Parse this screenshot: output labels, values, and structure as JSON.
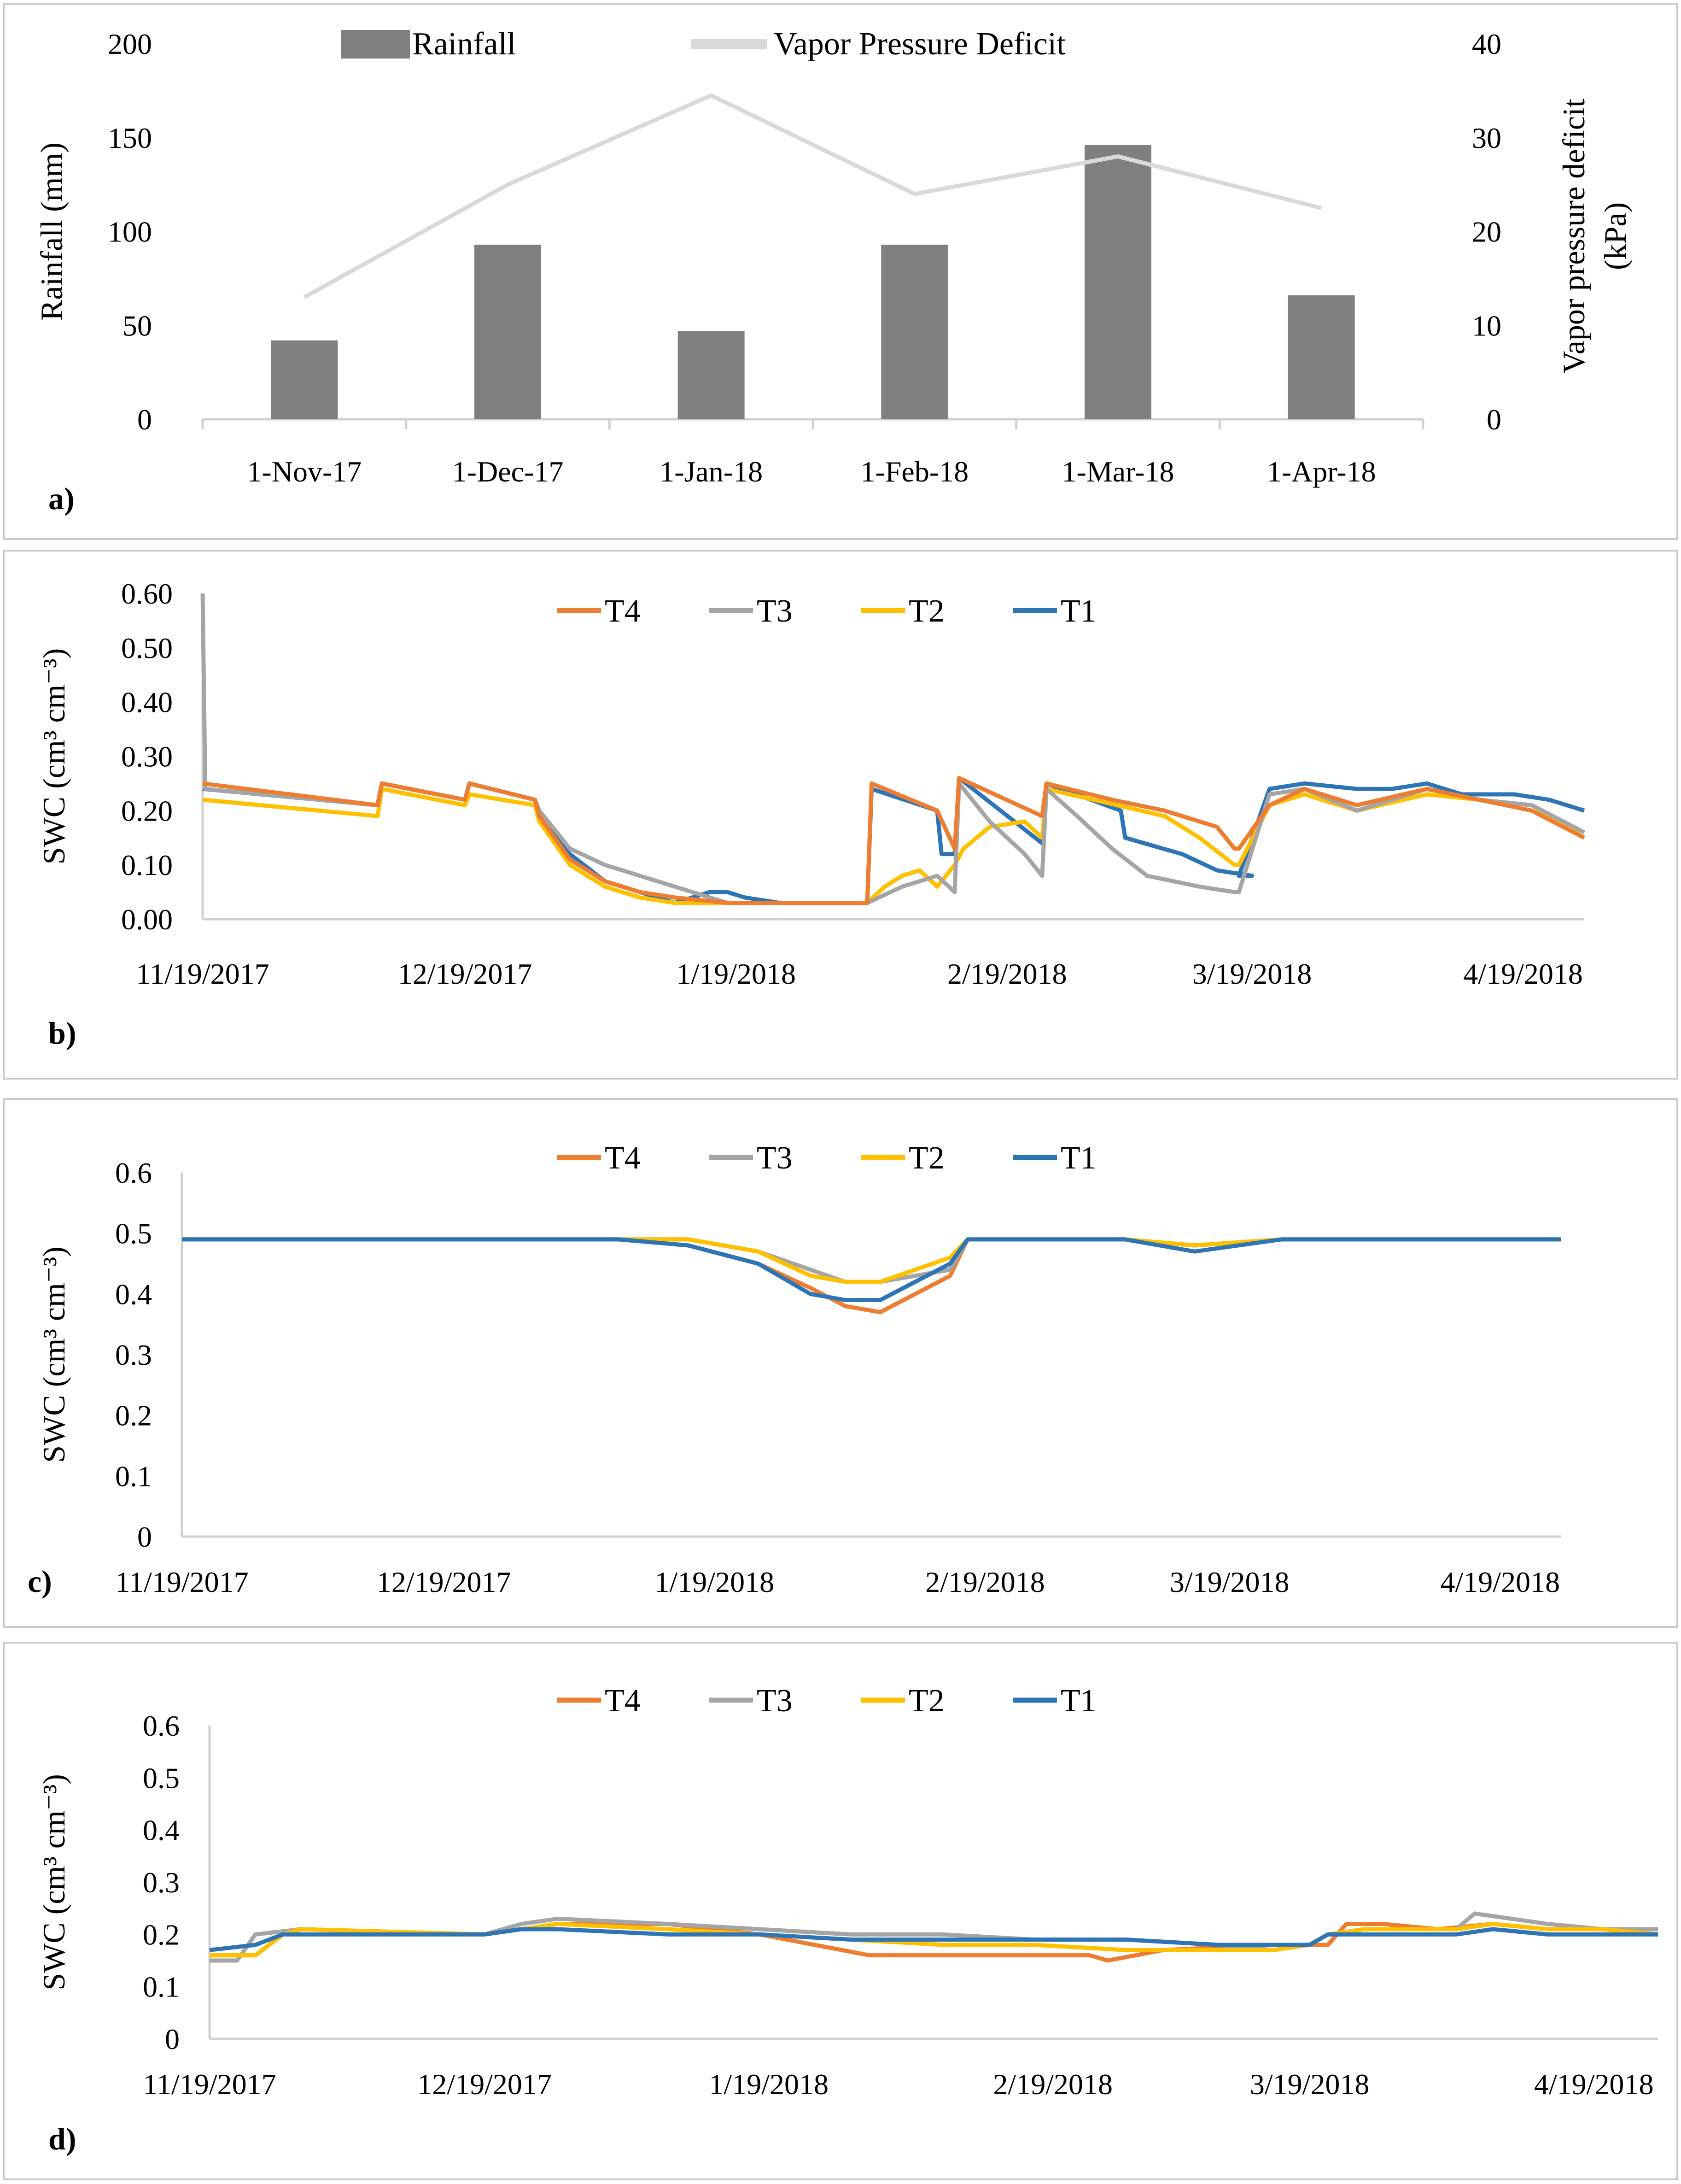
{
  "colors": {
    "T1": "#2e75b6",
    "T2": "#ffc000",
    "T3": "#a5a5a5",
    "T4": "#ed7d31",
    "rainfall": "#7f7f7f",
    "vpd": "#d9d9d9"
  },
  "chart_data": [
    {
      "id": "a",
      "panel_label": "a)",
      "type": "bar",
      "categories": [
        "1-Nov-17",
        "1-Dec-17",
        "1-Jan-18",
        "1-Feb-18",
        "1-Mar-18",
        "1-Apr-18"
      ],
      "series": [
        {
          "name": "Rainfall",
          "type": "bar",
          "axis": "left",
          "values": [
            42,
            93,
            47,
            93,
            146,
            66
          ]
        },
        {
          "name": "Vapor Pressure Deficit",
          "type": "line",
          "axis": "right",
          "values": [
            13,
            25,
            34.5,
            24,
            28,
            22.5
          ]
        }
      ],
      "ylabel": "Rainfall (mm)",
      "ylim": [
        0,
        200
      ],
      "yticks": [
        0,
        50,
        100,
        150,
        200
      ],
      "ytick_labels": [
        "0",
        "50",
        "100",
        "150",
        "200"
      ],
      "y2label_lines": [
        "Vapor pressure deficit",
        "(kPa)"
      ],
      "y2lim": [
        0,
        40
      ],
      "y2ticks": [
        0,
        10,
        20,
        30,
        40
      ],
      "y2tick_labels": [
        "0",
        "10",
        "20",
        "30",
        "40"
      ],
      "legend": [
        "Rainfall",
        "Vapor Pressure Deficit"
      ],
      "legend_position": "top-center"
    },
    {
      "id": "b",
      "panel_label": "b)",
      "type": "line",
      "ylabel": "SWC (cm³ cm⁻³)",
      "ylim": [
        0,
        0.6
      ],
      "yticks": [
        0,
        0.1,
        0.2,
        0.3,
        0.4,
        0.5,
        0.6
      ],
      "ytick_labels": [
        "0.00",
        "0.10",
        "0.20",
        "0.30",
        "0.40",
        "0.50",
        "0.60"
      ],
      "xlim": [
        0,
        158
      ],
      "xticks": [
        0,
        30,
        61,
        92,
        120,
        151
      ],
      "xtick_labels": [
        "11/19/2017",
        "12/19/2017",
        "1/19/2018",
        "2/19/2018",
        "3/19/2018",
        "4/19/2018"
      ],
      "legend": [
        "T4",
        "T3",
        "T2",
        "T1"
      ],
      "legend_position": "top-center",
      "x_unit": "days since 11/19/2017",
      "series": [
        {
          "name": "T1",
          "x": [
            0,
            20,
            20.5,
            30,
            30.5,
            38,
            38.5,
            42,
            46,
            50,
            54,
            58,
            60,
            62,
            66,
            70,
            76,
            76.5,
            84,
            84.5,
            86,
            86.5,
            96,
            96.5,
            105,
            105.5,
            112,
            116,
            120,
            118.5,
            122,
            126,
            132,
            136,
            140,
            144,
            150,
            154,
            158
          ],
          "y": [
            0.24,
            0.21,
            0.25,
            0.22,
            0.25,
            0.22,
            0.19,
            0.12,
            0.07,
            0.05,
            0.03,
            0.05,
            0.05,
            0.04,
            0.03,
            0.03,
            0.03,
            0.24,
            0.2,
            0.12,
            0.12,
            0.26,
            0.14,
            0.25,
            0.2,
            0.15,
            0.12,
            0.09,
            0.08,
            0.08,
            0.24,
            0.25,
            0.24,
            0.24,
            0.25,
            0.23,
            0.23,
            0.22,
            0.2
          ]
        },
        {
          "name": "T2",
          "x": [
            0,
            20,
            20.5,
            30,
            30.5,
            38,
            38.5,
            42,
            46,
            50,
            54,
            60,
            66,
            72,
            76,
            78,
            80,
            82,
            84,
            86,
            87,
            90,
            94,
            96,
            96.5,
            110,
            114,
            118,
            118.5,
            122,
            126,
            132,
            140,
            146,
            152,
            158
          ],
          "y": [
            0.22,
            0.19,
            0.24,
            0.21,
            0.23,
            0.21,
            0.18,
            0.1,
            0.06,
            0.04,
            0.03,
            0.03,
            0.03,
            0.03,
            0.03,
            0.06,
            0.08,
            0.09,
            0.06,
            0.1,
            0.13,
            0.17,
            0.18,
            0.15,
            0.24,
            0.19,
            0.15,
            0.1,
            0.1,
            0.21,
            0.23,
            0.2,
            0.23,
            0.22,
            0.21,
            0.15
          ]
        },
        {
          "name": "T3",
          "x": [
            0,
            0.3,
            20,
            20.5,
            30,
            30.5,
            38,
            38.5,
            42,
            46,
            50,
            56,
            60,
            66,
            72,
            76,
            80,
            84,
            86,
            86.5,
            90,
            94,
            96,
            96.5,
            100,
            104,
            108,
            114,
            118,
            118.5,
            122,
            126,
            132,
            140,
            146,
            152,
            158
          ],
          "y": [
            0.6,
            0.24,
            0.21,
            0.25,
            0.22,
            0.25,
            0.22,
            0.2,
            0.13,
            0.1,
            0.08,
            0.05,
            0.03,
            0.03,
            0.03,
            0.03,
            0.06,
            0.08,
            0.05,
            0.25,
            0.18,
            0.12,
            0.08,
            0.24,
            0.19,
            0.13,
            0.08,
            0.06,
            0.05,
            0.05,
            0.23,
            0.24,
            0.2,
            0.24,
            0.22,
            0.21,
            0.16
          ]
        },
        {
          "name": "T4",
          "x": [
            0,
            20,
            20.5,
            30,
            30.5,
            38,
            38.5,
            42,
            46,
            50,
            54,
            60,
            66,
            72,
            76,
            76.5,
            84,
            86,
            86.5,
            96,
            96.5,
            104,
            110,
            116,
            118,
            118.5,
            122,
            126,
            132,
            140,
            146,
            152,
            158
          ],
          "y": [
            0.25,
            0.21,
            0.25,
            0.22,
            0.25,
            0.22,
            0.19,
            0.11,
            0.07,
            0.05,
            0.04,
            0.03,
            0.03,
            0.03,
            0.03,
            0.25,
            0.2,
            0.13,
            0.26,
            0.19,
            0.25,
            0.22,
            0.2,
            0.17,
            0.13,
            0.13,
            0.21,
            0.24,
            0.21,
            0.24,
            0.22,
            0.2,
            0.15
          ]
        }
      ]
    },
    {
      "id": "c",
      "panel_label": "c)",
      "type": "line",
      "ylabel": "SWC (cm³ cm⁻³)",
      "ylim": [
        0,
        0.6
      ],
      "yticks": [
        0,
        0.1,
        0.2,
        0.3,
        0.4,
        0.5,
        0.6
      ],
      "ytick_labels": [
        "0",
        "0.1",
        "0.2",
        "0.3",
        "0.4",
        "0.5",
        "0.6"
      ],
      "xlim": [
        0,
        158
      ],
      "xticks": [
        0,
        30,
        61,
        92,
        120,
        151
      ],
      "xtick_labels": [
        "11/19/2017",
        "12/19/2017",
        "1/19/2018",
        "2/19/2018",
        "3/19/2018",
        "4/19/2018"
      ],
      "legend": [
        "T4",
        "T3",
        "T2",
        "T1"
      ],
      "legend_position": "top-center",
      "x_unit": "days since 11/19/2017",
      "series": [
        {
          "name": "T4",
          "x": [
            0,
            10,
            50,
            58,
            66,
            72,
            76,
            80,
            84,
            88,
            90,
            96,
            100,
            108,
            116,
            126,
            140,
            158
          ],
          "y": [
            0.49,
            0.49,
            0.49,
            0.48,
            0.45,
            0.41,
            0.38,
            0.37,
            0.4,
            0.43,
            0.49,
            0.49,
            0.49,
            0.49,
            0.48,
            0.49,
            0.49,
            0.49
          ]
        },
        {
          "name": "T3",
          "x": [
            0,
            10,
            50,
            58,
            66,
            72,
            76,
            80,
            84,
            88,
            90,
            96,
            100,
            108,
            116,
            126,
            140,
            158
          ],
          "y": [
            0.49,
            0.49,
            0.49,
            0.49,
            0.47,
            0.44,
            0.42,
            0.42,
            0.43,
            0.44,
            0.49,
            0.49,
            0.49,
            0.49,
            0.48,
            0.49,
            0.49,
            0.49
          ]
        },
        {
          "name": "T2",
          "x": [
            0,
            10,
            50,
            58,
            66,
            72,
            76,
            80,
            84,
            88,
            90,
            96,
            100,
            108,
            116,
            126,
            140,
            158
          ],
          "y": [
            0.49,
            0.49,
            0.49,
            0.49,
            0.47,
            0.43,
            0.42,
            0.42,
            0.44,
            0.46,
            0.49,
            0.49,
            0.49,
            0.49,
            0.48,
            0.49,
            0.49,
            0.49
          ]
        },
        {
          "name": "T1",
          "x": [
            0,
            10,
            50,
            58,
            66,
            72,
            76,
            80,
            84,
            88,
            90,
            96,
            100,
            108,
            116,
            126,
            140,
            158
          ],
          "y": [
            0.49,
            0.49,
            0.49,
            0.48,
            0.45,
            0.4,
            0.39,
            0.39,
            0.42,
            0.45,
            0.49,
            0.49,
            0.49,
            0.49,
            0.47,
            0.49,
            0.49,
            0.49
          ]
        }
      ]
    },
    {
      "id": "d",
      "panel_label": "d)",
      "type": "line",
      "ylabel": "SWC (cm³ cm⁻³)",
      "ylim": [
        0,
        0.6
      ],
      "yticks": [
        0,
        0.1,
        0.2,
        0.3,
        0.4,
        0.5,
        0.6
      ],
      "ytick_labels": [
        "0",
        "0.1",
        "0.2",
        "0.3",
        "0.4",
        "0.5",
        "0.6"
      ],
      "xlim": [
        0,
        158
      ],
      "xticks": [
        0,
        30,
        61,
        92,
        120,
        151
      ],
      "xtick_labels": [
        "11/19/2017",
        "12/19/2017",
        "1/19/2018",
        "2/19/2018",
        "3/19/2018",
        "4/19/2018"
      ],
      "legend": [
        "T4",
        "T3",
        "T2",
        "T1"
      ],
      "legend_position": "top-center",
      "x_unit": "days since 11/19/2017",
      "series": [
        {
          "name": "T4",
          "x": [
            0,
            5,
            8,
            10,
            30,
            34,
            38,
            50,
            60,
            66,
            72,
            80,
            90,
            96,
            98,
            104,
            116,
            122,
            124,
            128,
            134,
            140,
            146,
            152,
            158
          ],
          "y": [
            0.16,
            0.16,
            0.2,
            0.21,
            0.2,
            0.21,
            0.22,
            0.22,
            0.2,
            0.18,
            0.16,
            0.16,
            0.16,
            0.16,
            0.15,
            0.17,
            0.18,
            0.18,
            0.22,
            0.22,
            0.21,
            0.22,
            0.21,
            0.21,
            0.2
          ]
        },
        {
          "name": "T3",
          "x": [
            0,
            3,
            5,
            10,
            30,
            34,
            38,
            50,
            60,
            70,
            80,
            90,
            100,
            110,
            116,
            120,
            122,
            126,
            136,
            138,
            146,
            152,
            158
          ],
          "y": [
            0.15,
            0.15,
            0.2,
            0.21,
            0.2,
            0.22,
            0.23,
            0.22,
            0.21,
            0.2,
            0.2,
            0.19,
            0.19,
            0.18,
            0.17,
            0.18,
            0.2,
            0.21,
            0.21,
            0.24,
            0.22,
            0.21,
            0.21
          ]
        },
        {
          "name": "T2",
          "x": [
            0,
            5,
            8,
            10,
            30,
            34,
            38,
            50,
            60,
            70,
            80,
            90,
            100,
            110,
            116,
            120,
            122,
            126,
            136,
            140,
            146,
            152,
            158
          ],
          "y": [
            0.16,
            0.16,
            0.2,
            0.21,
            0.2,
            0.21,
            0.22,
            0.21,
            0.2,
            0.19,
            0.18,
            0.18,
            0.17,
            0.17,
            0.17,
            0.18,
            0.2,
            0.21,
            0.21,
            0.22,
            0.21,
            0.21,
            0.2
          ]
        },
        {
          "name": "T1",
          "x": [
            0,
            5,
            8,
            10,
            30,
            34,
            38,
            50,
            60,
            70,
            80,
            90,
            100,
            110,
            116,
            120,
            122,
            126,
            136,
            140,
            146,
            152,
            158
          ],
          "y": [
            0.17,
            0.18,
            0.2,
            0.2,
            0.2,
            0.21,
            0.21,
            0.2,
            0.2,
            0.19,
            0.19,
            0.19,
            0.19,
            0.18,
            0.18,
            0.18,
            0.2,
            0.2,
            0.2,
            0.21,
            0.2,
            0.2,
            0.2
          ]
        }
      ]
    }
  ]
}
